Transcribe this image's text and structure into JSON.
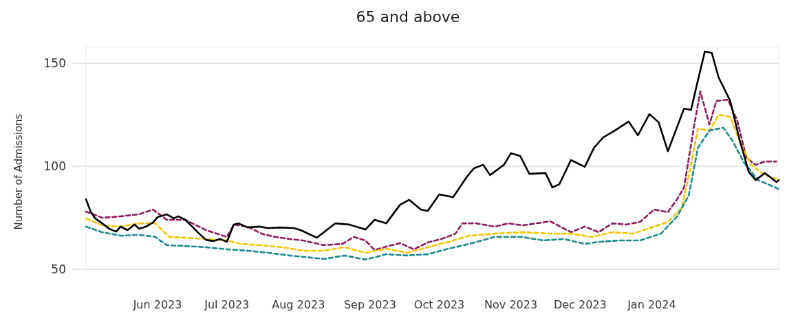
{
  "chart_data": {
    "type": "line",
    "title": "65 and above",
    "ylabel": "Number of Admissions",
    "grid": "y",
    "line_style": "solid",
    "marker": "none",
    "xlim": [
      "2023-05-01",
      "2024-02-25"
    ],
    "ylim": [
      50,
      158
    ],
    "yticks": [
      50,
      100,
      150
    ],
    "xticks": [
      {
        "value": "2023-06-01",
        "label": "Jun 2023"
      },
      {
        "value": "2023-07-01",
        "label": "Jul 2023"
      },
      {
        "value": "2023-08-01",
        "label": "Aug 2023"
      },
      {
        "value": "2023-09-01",
        "label": "Sep 2023"
      },
      {
        "value": "2023-10-01",
        "label": "Oct 2023"
      },
      {
        "value": "2023-11-01",
        "label": "Nov 2023"
      },
      {
        "value": "2023-12-01",
        "label": "Dec 2023"
      },
      {
        "value": "2024-01-01",
        "label": "Jan 2024"
      }
    ],
    "series": [
      {
        "color": "#8b1a5e",
        "line_style": "dashed",
        "x": [
          "2023-05-01",
          "2023-05-08",
          "2023-05-16",
          "2023-05-24",
          "2023-05-30",
          "2023-06-05",
          "2023-06-13",
          "2023-06-22",
          "2023-07-01",
          "2023-07-04",
          "2023-07-10",
          "2023-07-16",
          "2023-07-22",
          "2023-07-28",
          "2023-08-03",
          "2023-08-12",
          "2023-08-20",
          "2023-08-25",
          "2023-08-30",
          "2023-09-03",
          "2023-09-08",
          "2023-09-14",
          "2023-09-20",
          "2023-09-26",
          "2023-10-02",
          "2023-10-08",
          "2023-10-11",
          "2023-10-17",
          "2023-10-25",
          "2023-10-31",
          "2023-11-06",
          "2023-11-12",
          "2023-11-18",
          "2023-11-27",
          "2023-12-03",
          "2023-12-09",
          "2023-12-15",
          "2023-12-21",
          "2023-12-27",
          "2024-01-02",
          "2024-01-08",
          "2024-01-12",
          "2024-01-15",
          "2024-01-19",
          "2024-01-22",
          "2024-01-26",
          "2024-01-29",
          "2024-02-03",
          "2024-02-07",
          "2024-02-11",
          "2024-02-15",
          "2024-02-19",
          "2024-02-24"
        ],
        "values": [
          78,
          75,
          75.7,
          76.7,
          79,
          74,
          74,
          69,
          65.7,
          71.7,
          70.7,
          67.3,
          65.7,
          64.7,
          64,
          61.7,
          62.3,
          65.7,
          64,
          59.3,
          61,
          62.7,
          59.7,
          63,
          64.7,
          67.3,
          72.3,
          72.3,
          70.7,
          72.3,
          71.3,
          72.3,
          73.3,
          68,
          70.7,
          68,
          72.3,
          71.7,
          73,
          79,
          77.7,
          84,
          89.7,
          117.3,
          136.3,
          120.3,
          131.7,
          132.3,
          122.3,
          104,
          100.7,
          102.3,
          102.3
        ]
      },
      {
        "color": "#f5c400",
        "line_style": "dashed",
        "x": [
          "2023-05-01",
          "2023-05-08",
          "2023-05-16",
          "2023-05-24",
          "2023-05-31",
          "2023-06-06",
          "2023-06-13",
          "2023-06-22",
          "2023-07-01",
          "2023-07-07",
          "2023-07-16",
          "2023-07-25",
          "2023-08-03",
          "2023-08-12",
          "2023-08-21",
          "2023-08-30",
          "2023-09-08",
          "2023-09-17",
          "2023-09-26",
          "2023-10-05",
          "2023-10-14",
          "2023-10-25",
          "2023-11-06",
          "2023-11-18",
          "2023-11-27",
          "2023-12-06",
          "2023-12-15",
          "2023-12-24",
          "2024-01-02",
          "2024-01-08",
          "2024-01-14",
          "2024-01-18",
          "2024-01-21",
          "2024-01-26",
          "2024-01-30",
          "2024-02-04",
          "2024-02-08",
          "2024-02-13",
          "2024-02-19",
          "2024-02-24"
        ],
        "values": [
          74.7,
          71.3,
          70.7,
          72.3,
          72.3,
          65.7,
          65.3,
          64.7,
          64,
          62.3,
          61.7,
          60.7,
          59,
          59,
          60.7,
          58,
          60,
          58,
          60.7,
          63.3,
          66.3,
          67.3,
          68,
          67.3,
          67.3,
          65.7,
          68,
          67.3,
          70.7,
          73,
          79.7,
          100.7,
          118.3,
          117.3,
          125,
          124,
          112.3,
          100.7,
          95.7,
          94
        ]
      },
      {
        "color": "#1a8a8e",
        "line_style": "dashed",
        "x": [
          "2023-05-01",
          "2023-05-08",
          "2023-05-16",
          "2023-05-24",
          "2023-05-31",
          "2023-06-05",
          "2023-06-13",
          "2023-06-22",
          "2023-07-01",
          "2023-07-10",
          "2023-07-19",
          "2023-07-28",
          "2023-08-06",
          "2023-08-12",
          "2023-08-21",
          "2023-08-30",
          "2023-09-08",
          "2023-09-17",
          "2023-09-26",
          "2023-10-05",
          "2023-10-14",
          "2023-10-25",
          "2023-11-06",
          "2023-11-15",
          "2023-11-24",
          "2023-12-03",
          "2023-12-09",
          "2023-12-18",
          "2023-12-27",
          "2024-01-05",
          "2024-01-12",
          "2024-01-17",
          "2024-01-21",
          "2024-01-26",
          "2024-02-01",
          "2024-02-05",
          "2024-02-10",
          "2024-02-16",
          "2024-02-25"
        ],
        "values": [
          70.7,
          68,
          66.3,
          66.7,
          65.7,
          61.7,
          61.3,
          60.7,
          59.7,
          59,
          58,
          56.7,
          55.7,
          55,
          56.7,
          54.7,
          57.3,
          56.7,
          57.3,
          60,
          62.3,
          65.7,
          65.7,
          64,
          64.7,
          62.3,
          63.3,
          64,
          64,
          67.3,
          75.7,
          85.7,
          109,
          117.3,
          118.7,
          112.3,
          101.7,
          93.3,
          89
        ]
      },
      {
        "color": "#000000",
        "x": [
          "2023-05-01",
          "2023-05-03",
          "2023-05-05",
          "2023-05-08",
          "2023-05-11",
          "2023-05-14",
          "2023-05-16",
          "2023-05-19",
          "2023-05-22",
          "2023-05-24",
          "2023-05-27",
          "2023-05-30",
          "2023-06-01",
          "2023-06-05",
          "2023-06-08",
          "2023-06-10",
          "2023-06-13",
          "2023-06-16",
          "2023-06-19",
          "2023-06-22",
          "2023-06-25",
          "2023-06-28",
          "2023-07-01",
          "2023-07-04",
          "2023-07-06",
          "2023-07-10",
          "2023-07-15",
          "2023-07-19",
          "2023-07-24",
          "2023-07-30",
          "2023-08-02",
          "2023-08-09",
          "2023-08-17",
          "2023-08-23",
          "2023-08-30",
          "2023-09-03",
          "2023-09-08",
          "2023-09-14",
          "2023-09-18",
          "2023-09-23",
          "2023-09-26",
          "2023-10-01",
          "2023-10-07",
          "2023-10-13",
          "2023-10-16",
          "2023-10-20",
          "2023-10-23",
          "2023-10-29",
          "2023-11-01",
          "2023-11-05",
          "2023-11-09",
          "2023-11-16",
          "2023-11-19",
          "2023-11-22",
          "2023-11-27",
          "2023-12-03",
          "2023-12-07",
          "2023-12-11",
          "2023-12-16",
          "2023-12-22",
          "2023-12-26",
          "2023-12-31",
          "2024-01-04",
          "2024-01-08",
          "2024-01-15",
          "2024-01-18",
          "2024-01-21",
          "2024-01-24",
          "2024-01-27",
          "2024-01-30",
          "2024-02-04",
          "2024-02-08",
          "2024-02-12",
          "2024-02-15",
          "2024-02-19",
          "2024-02-24",
          "2024-02-25"
        ],
        "values": [
          84,
          78,
          74.7,
          72.3,
          69.7,
          68.3,
          70.7,
          69,
          71.7,
          69.7,
          70.7,
          72.7,
          75.3,
          76.7,
          74.7,
          75.7,
          74,
          70.7,
          67.3,
          64.3,
          63.7,
          64.7,
          63.3,
          71.7,
          72.3,
          70.3,
          70.7,
          70,
          70.3,
          70,
          69,
          65.3,
          72.3,
          71.7,
          69.3,
          74,
          72.3,
          81.3,
          83.7,
          79,
          78.3,
          86.3,
          85,
          95,
          99,
          100.7,
          95.7,
          100.7,
          106.3,
          105,
          96.3,
          96.7,
          89.7,
          91.3,
          103,
          99.7,
          109,
          114,
          117.3,
          121.7,
          115,
          125.3,
          121.3,
          107.3,
          128,
          127.3,
          141.7,
          155.7,
          155,
          143,
          131.7,
          113,
          97.3,
          93.3,
          96.7,
          92.3,
          93.3
        ]
      }
    ]
  }
}
